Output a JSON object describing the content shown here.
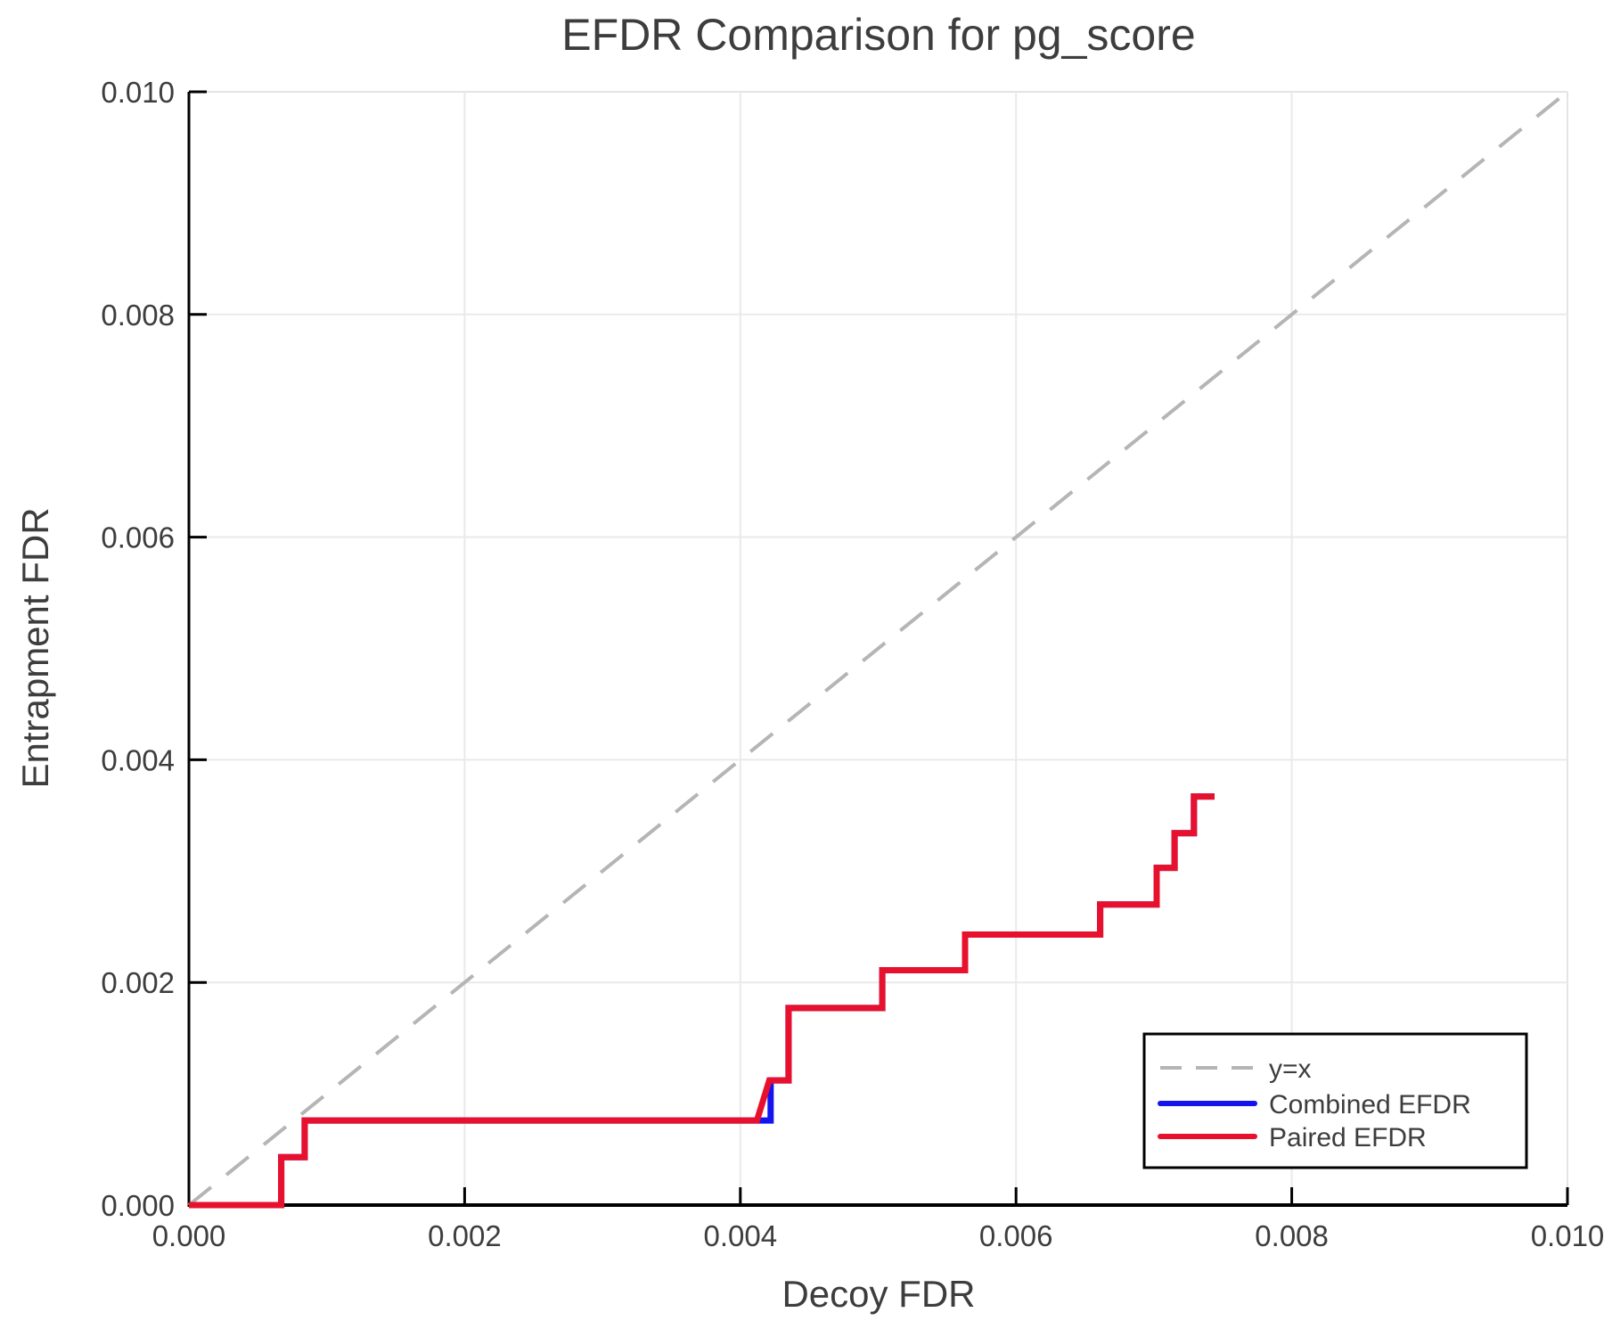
{
  "chart_data": {
    "type": "line",
    "title": "EFDR Comparison for pg_score",
    "xlabel": "Decoy FDR",
    "ylabel": "Entrapment FDR",
    "xlim": [
      0.0,
      0.01
    ],
    "ylim": [
      0.0,
      0.01
    ],
    "grid": true,
    "x_ticks": {
      "values": [
        0.0,
        0.002,
        0.004,
        0.006,
        0.008,
        0.01
      ],
      "labels": [
        "0.000",
        "0.002",
        "0.004",
        "0.006",
        "0.008",
        "0.010"
      ]
    },
    "y_ticks": {
      "values": [
        0.0,
        0.002,
        0.004,
        0.006,
        0.008,
        0.01
      ],
      "labels": [
        "0.000",
        "0.002",
        "0.004",
        "0.006",
        "0.008",
        "0.010"
      ]
    },
    "colors": {
      "grid": "#eaeaea",
      "frame": "#e4e4e4",
      "spine": "#000000",
      "text": "#3d3d3d",
      "legend_border": "#000000",
      "legend_background": "#ffffff"
    },
    "legend": {
      "position": "lower-right"
    },
    "series": [
      {
        "name": "y=x",
        "style": "dashed",
        "color": "#b5b5b5",
        "width": 4,
        "points": [
          [
            0.0,
            0.0
          ],
          [
            0.01,
            0.01
          ]
        ]
      },
      {
        "name": "Combined EFDR",
        "style": "solid",
        "color": "#1414ee",
        "width": 7,
        "points": [
          [
            0.0,
            0.0
          ],
          [
            0.00067,
            0.0
          ],
          [
            0.00067,
            0.00043
          ],
          [
            0.00084,
            0.00043
          ],
          [
            0.00084,
            0.00076
          ],
          [
            0.00422,
            0.00076
          ],
          [
            0.00422,
            0.00112
          ],
          [
            0.00435,
            0.00112
          ],
          [
            0.00435,
            0.00177
          ],
          [
            0.00503,
            0.00177
          ],
          [
            0.00503,
            0.00211
          ],
          [
            0.00563,
            0.00211
          ],
          [
            0.00563,
            0.00243
          ],
          [
            0.00661,
            0.00243
          ],
          [
            0.00661,
            0.0027
          ],
          [
            0.00702,
            0.0027
          ],
          [
            0.00702,
            0.00303
          ],
          [
            0.00715,
            0.00303
          ],
          [
            0.00715,
            0.00334
          ],
          [
            0.00729,
            0.00334
          ],
          [
            0.00729,
            0.00367
          ],
          [
            0.00744,
            0.00367
          ]
        ]
      },
      {
        "name": "Paired EFDR",
        "style": "solid",
        "color": "#e8112d",
        "width": 7,
        "points": [
          [
            0.0,
            0.0
          ],
          [
            0.00067,
            0.0
          ],
          [
            0.00067,
            0.00043
          ],
          [
            0.00084,
            0.00043
          ],
          [
            0.00084,
            0.00076
          ],
          [
            0.00412,
            0.00076
          ],
          [
            0.00421,
            0.00112
          ],
          [
            0.00435,
            0.00112
          ],
          [
            0.00435,
            0.00177
          ],
          [
            0.00503,
            0.00177
          ],
          [
            0.00503,
            0.00211
          ],
          [
            0.00563,
            0.00211
          ],
          [
            0.00563,
            0.00243
          ],
          [
            0.00661,
            0.00243
          ],
          [
            0.00661,
            0.0027
          ],
          [
            0.00702,
            0.0027
          ],
          [
            0.00702,
            0.00303
          ],
          [
            0.00715,
            0.00303
          ],
          [
            0.00715,
            0.00334
          ],
          [
            0.00729,
            0.00334
          ],
          [
            0.00729,
            0.00367
          ],
          [
            0.00744,
            0.00367
          ]
        ]
      }
    ]
  }
}
